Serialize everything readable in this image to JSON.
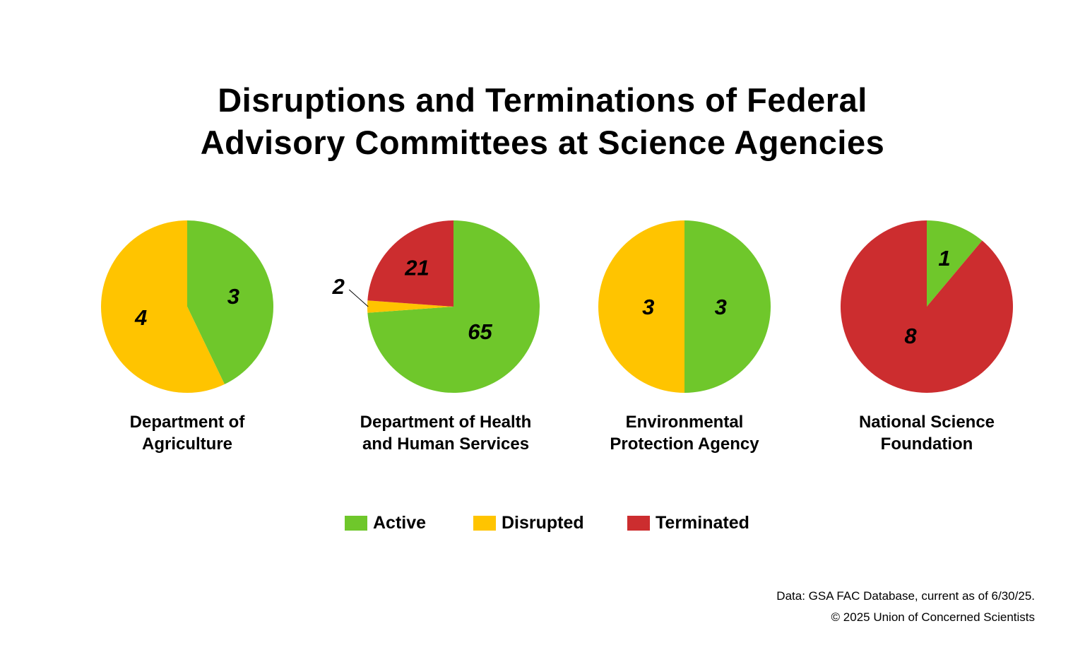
{
  "title_lines": [
    "Disruptions and Terminations of Federal",
    "Advisory Committees at Science Agencies"
  ],
  "colors": {
    "active": "#6fc72b",
    "disrupted": "#ffc400",
    "terminated": "#cc2d2f"
  },
  "legend": [
    {
      "key": "active",
      "label": "Active"
    },
    {
      "key": "disrupted",
      "label": "Disrupted"
    },
    {
      "key": "terminated",
      "label": "Terminated"
    }
  ],
  "chart_data": [
    {
      "type": "pie",
      "title_lines": [
        "Department of",
        "Agriculture"
      ],
      "slices": [
        {
          "category": "Active",
          "value": 3,
          "label": "3"
        },
        {
          "category": "Disrupted",
          "value": 4,
          "label": "4"
        },
        {
          "category": "Terminated",
          "value": 0,
          "label": ""
        }
      ]
    },
    {
      "type": "pie",
      "title_lines": [
        "Department of Health",
        "and Human Services"
      ],
      "slices": [
        {
          "category": "Active",
          "value": 65,
          "label": "65"
        },
        {
          "category": "Disrupted",
          "value": 2,
          "label": "2"
        },
        {
          "category": "Terminated",
          "value": 21,
          "label": "21"
        }
      ]
    },
    {
      "type": "pie",
      "title_lines": [
        "Environmental",
        "Protection Agency"
      ],
      "slices": [
        {
          "category": "Active",
          "value": 3,
          "label": "3"
        },
        {
          "category": "Disrupted",
          "value": 3,
          "label": "3"
        },
        {
          "category": "Terminated",
          "value": 0,
          "label": ""
        }
      ]
    },
    {
      "type": "pie",
      "title_lines": [
        "National Science",
        "Foundation"
      ],
      "slices": [
        {
          "category": "Active",
          "value": 1,
          "label": "1"
        },
        {
          "category": "Disrupted",
          "value": 0,
          "label": ""
        },
        {
          "category": "Terminated",
          "value": 8,
          "label": "8"
        }
      ]
    }
  ],
  "source": "Data: GSA FAC Database, current as of 6/30/25.",
  "copyright": "© 2025 Union of Concerned Scientists"
}
